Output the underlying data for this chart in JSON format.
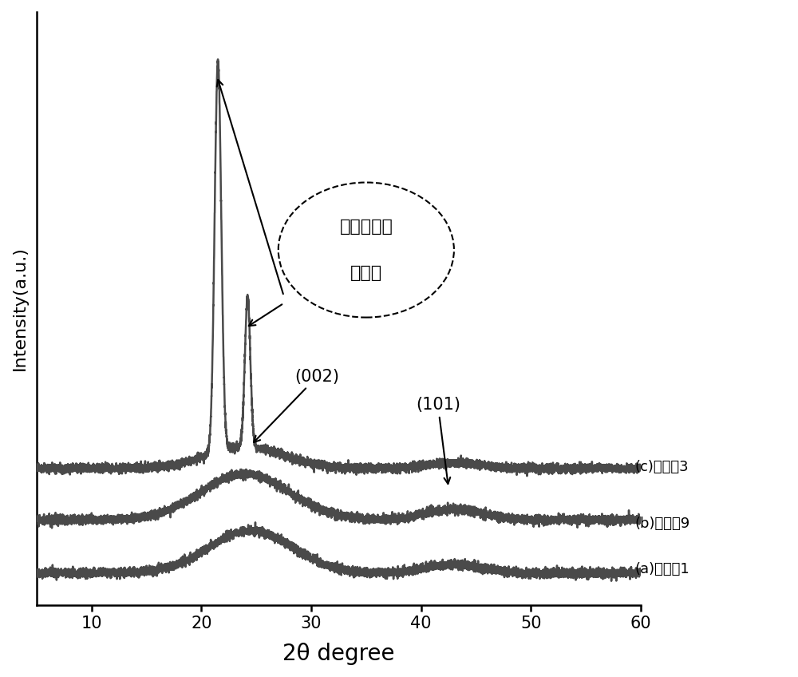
{
  "xlabel": "2θ degree",
  "ylabel": "Intensity(a.u.)",
  "xmin": 5,
  "xmax": 60,
  "color": "#4a4a4a",
  "linewidth": 1.8,
  "label_c": "(c)对比例3",
  "label_b": "(b)实施例9",
  "label_a": "(a)实施例1",
  "ellipse_line1": "线性低密度",
  "ellipse_line2": "聚乙烯",
  "peak_002": "(002)",
  "peak_101": "(101)",
  "background_color": "#ffffff",
  "noise_seed": 42,
  "xticks": [
    10,
    20,
    30,
    40,
    50,
    60
  ]
}
